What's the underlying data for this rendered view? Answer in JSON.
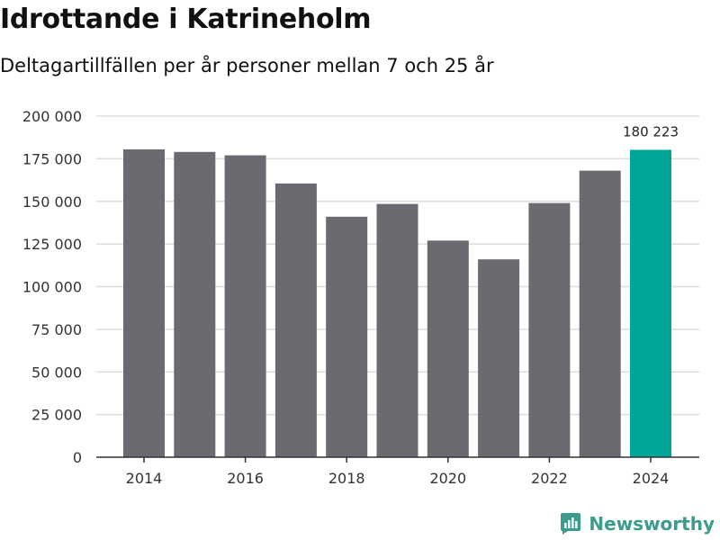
{
  "chart_data": {
    "type": "bar",
    "title": "Idrottande i Katrineholm",
    "subtitle": "Deltagartillfällen per år personer mellan 7 och 25 år",
    "xlabel": "",
    "ylabel": "",
    "categories": [
      2014,
      2015,
      2016,
      2017,
      2018,
      2019,
      2020,
      2021,
      2022,
      2023,
      2024
    ],
    "values": [
      180500,
      179000,
      177000,
      160500,
      141000,
      148500,
      127000,
      116000,
      149000,
      168000,
      180223
    ],
    "ylim": [
      0,
      200000
    ],
    "yticks": [
      0,
      25000,
      50000,
      75000,
      100000,
      125000,
      150000,
      175000,
      200000
    ],
    "ytick_labels": [
      "0",
      "25 000",
      "50 000",
      "75 000",
      "100 000",
      "125 000",
      "150 000",
      "175 000",
      "200 000"
    ],
    "xtick_labels": [
      "2014",
      "2016",
      "2018",
      "2020",
      "2022",
      "2024"
    ],
    "xtick_years": [
      2014,
      2016,
      2018,
      2020,
      2022,
      2024
    ],
    "highlight_label": "180 223",
    "highlight_index": 10,
    "grid": true,
    "colors": {
      "bar": "#6b6a70",
      "highlight": "#00a59a",
      "grid": "#dddddd",
      "axis": "#333333"
    }
  },
  "brand": {
    "name": "Newsworthy",
    "color": "#3a9b8e"
  }
}
